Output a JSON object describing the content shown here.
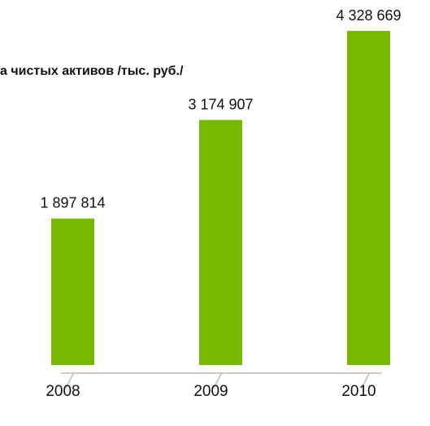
{
  "chart_data": {
    "type": "bar",
    "title": "а чистых активов /тыс. руб./",
    "categories": [
      "2008",
      "2009",
      "2010"
    ],
    "values": [
      1897814,
      3174907,
      4328669
    ],
    "value_labels": [
      "1 897 814",
      "3 174 907",
      "4 328 669"
    ],
    "color": "#77b800"
  }
}
